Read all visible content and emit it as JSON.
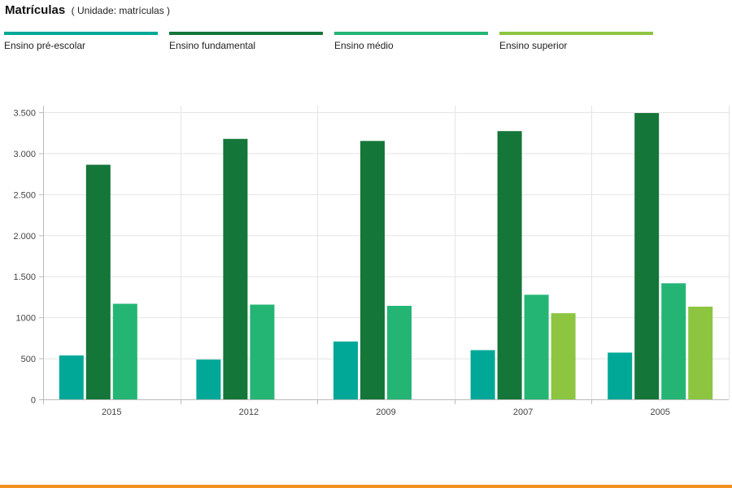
{
  "header": {
    "title": "Matrículas",
    "unit_text": "( Unidade: matrículas )"
  },
  "chart_data": {
    "type": "bar",
    "categories": [
      "2015",
      "2012",
      "2009",
      "2007",
      "2005"
    ],
    "series": [
      {
        "name": "Ensino pré-escolar",
        "color": "#01a898",
        "values": [
          535,
          485,
          705,
          600,
          570
        ]
      },
      {
        "name": "Ensino fundamental",
        "color": "#15763a",
        "values": [
          2860,
          3175,
          3150,
          3270,
          3490
        ]
      },
      {
        "name": "Ensino médio",
        "color": "#24b574",
        "values": [
          1165,
          1155,
          1140,
          1275,
          1415
        ]
      },
      {
        "name": "Ensino superior",
        "color": "#8dc541",
        "values": [
          null,
          null,
          null,
          1050,
          1130
        ]
      }
    ],
    "y_ticks": [
      {
        "value": 0,
        "label": "0"
      },
      {
        "value": 500,
        "label": "500"
      },
      {
        "value": 1000,
        "label": "1000"
      },
      {
        "value": 1500,
        "label": "1.500"
      },
      {
        "value": 2000,
        "label": "2.000"
      },
      {
        "value": 2500,
        "label": "2.500"
      },
      {
        "value": 3000,
        "label": "3.000"
      },
      {
        "value": 3500,
        "label": "3.500"
      }
    ],
    "ylim": [
      0,
      3500
    ],
    "grid": true,
    "legend_position": "top",
    "xlabel": "",
    "ylabel": ""
  },
  "footer": {
    "accent_color": "#f29120"
  }
}
